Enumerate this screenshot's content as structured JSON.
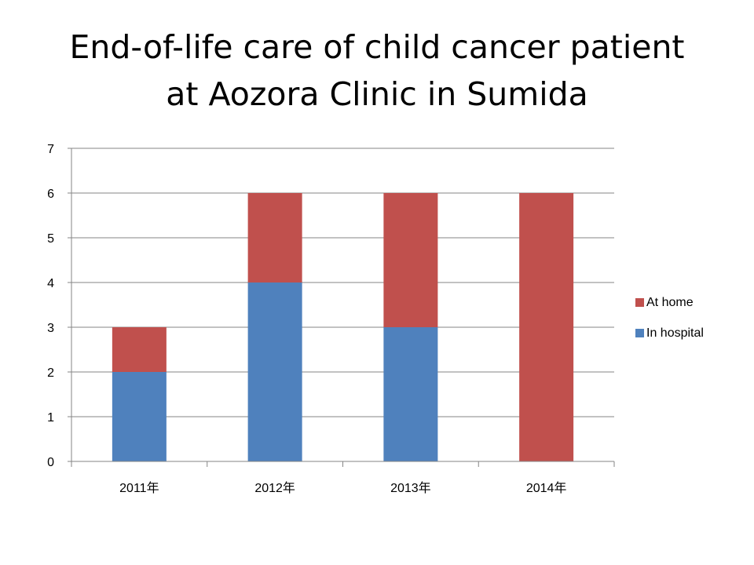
{
  "slide": {
    "title_line1": "End-of-life care of child cancer patient",
    "title_line2": "at Aozora Clinic in Sumida"
  },
  "chart_data": {
    "type": "bar",
    "stacked": true,
    "title": "End-of-life care of child cancer patient at Aozora Clinic in Sumida",
    "categories": [
      "2011年",
      "2012年",
      "2013年",
      "2014年"
    ],
    "series": [
      {
        "name": "In hospital",
        "values": [
          2,
          4,
          3,
          0
        ],
        "color": "#4f81bd"
      },
      {
        "name": "At home",
        "values": [
          1,
          2,
          3,
          6
        ],
        "color": "#c0504d"
      }
    ],
    "ylim": [
      0,
      7
    ],
    "yticks": [
      "0",
      "1",
      "2",
      "3",
      "4",
      "5",
      "6",
      "7"
    ],
    "grid": true,
    "legend": {
      "position": "right",
      "order": [
        "At home",
        "In hospital"
      ]
    },
    "colors": {
      "gridline": "#868686",
      "axis": "#868686"
    }
  }
}
